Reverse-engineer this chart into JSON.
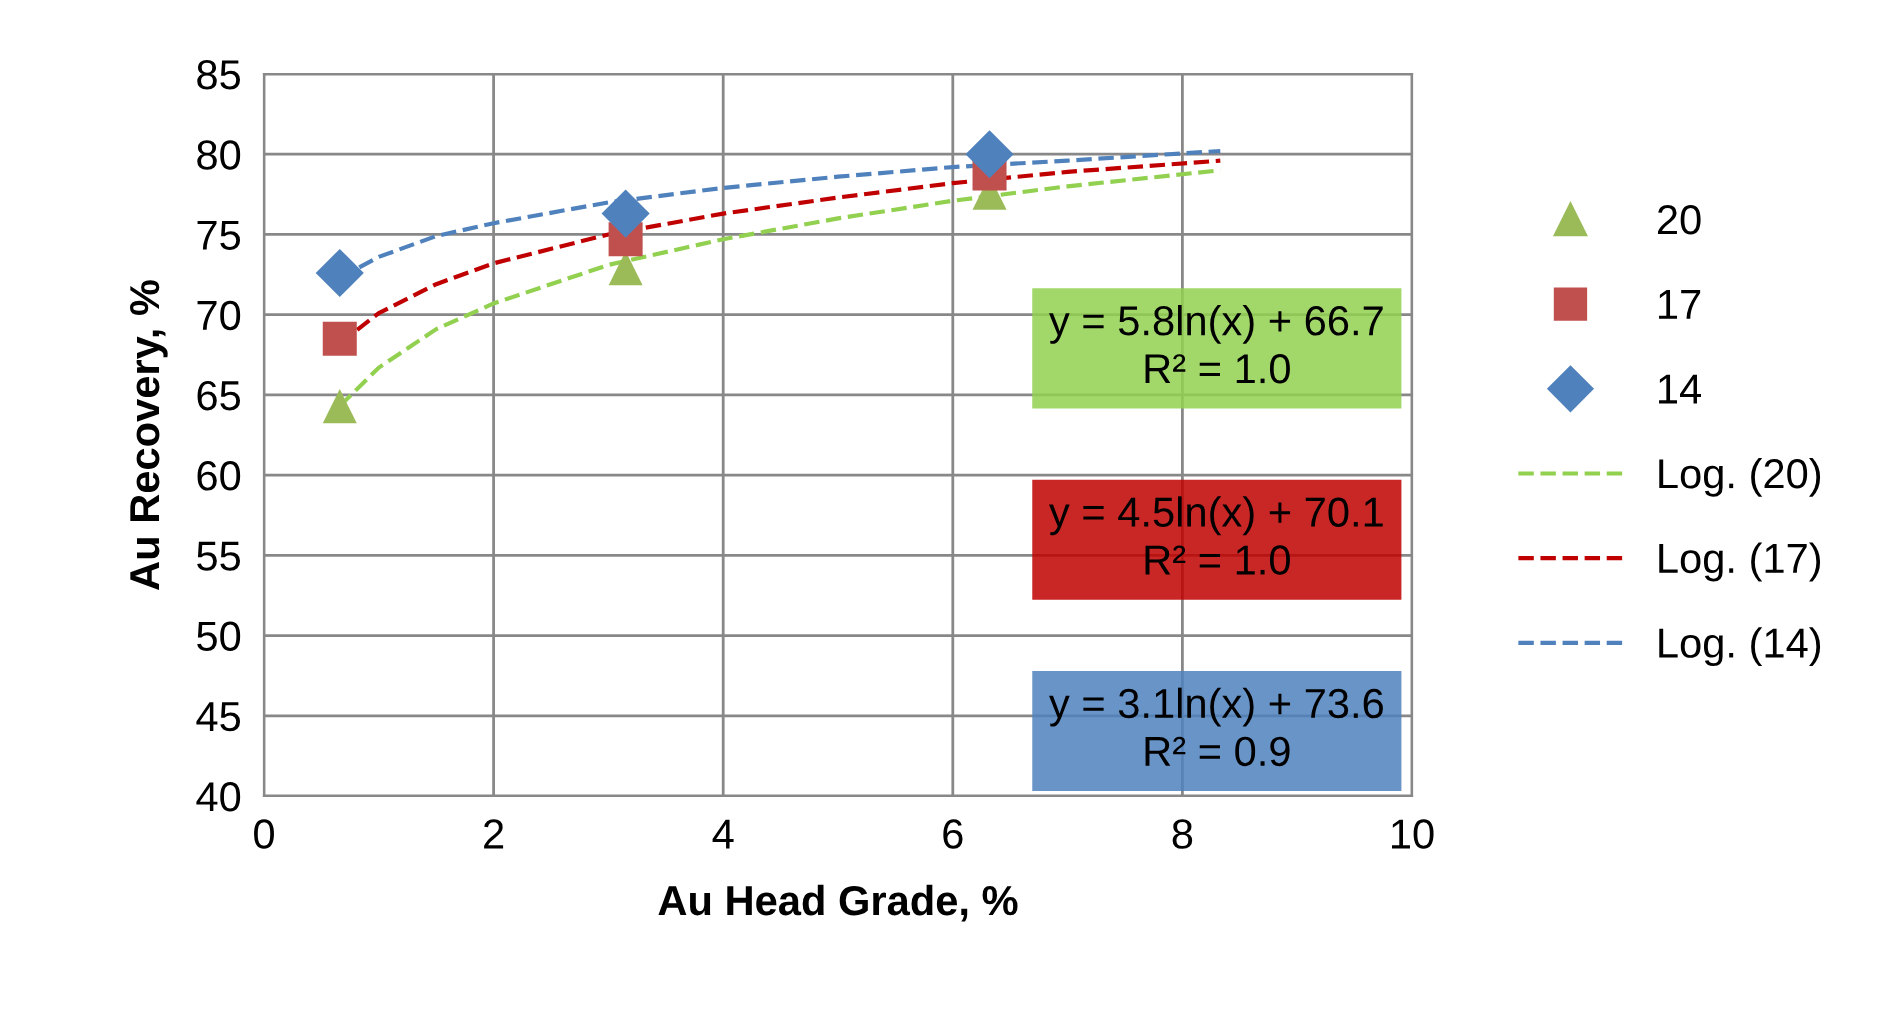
{
  "chart_data": {
    "type": "scatter",
    "xlabel": "Au Head Grade, %",
    "ylabel": "Au Recovery, %",
    "xlim": [
      0,
      10
    ],
    "xticks": [
      0,
      2,
      4,
      6,
      8,
      10
    ],
    "ylim": [
      40,
      85
    ],
    "yticks": [
      40,
      45,
      50,
      55,
      60,
      65,
      70,
      75,
      80,
      85
    ],
    "grid": true,
    "legend": "right",
    "series": [
      {
        "name": "20",
        "color": "#9bbb59",
        "marker": "triangle",
        "x": [
          0.66,
          3.15,
          6.32
        ],
        "values": [
          64.3,
          72.9,
          77.6
        ]
      },
      {
        "name": "17",
        "color": "#c0504d",
        "marker": "square",
        "x": [
          0.66,
          3.15,
          6.32
        ],
        "values": [
          68.5,
          74.7,
          78.8
        ]
      },
      {
        "name": "14",
        "color": "#4f81bd",
        "marker": "diamond",
        "x": [
          0.66,
          3.15,
          6.32
        ],
        "values": [
          72.6,
          76.3,
          80.0
        ]
      },
      {
        "name": "Log. (20)",
        "type": "line",
        "line_style": "dashed",
        "color": "#92d050",
        "x": [
          0.66,
          1,
          1.5,
          2,
          3,
          4,
          5,
          6,
          7,
          8.33
        ],
        "values": [
          64.3,
          66.7,
          69.1,
          70.7,
          73.1,
          74.7,
          76.0,
          77.1,
          78.0,
          79.0
        ]
      },
      {
        "name": "Log. (17)",
        "type": "line",
        "line_style": "dashed",
        "color": "#c00000",
        "x": [
          0.66,
          1,
          1.5,
          2,
          3,
          4,
          5,
          6,
          7,
          8.33
        ],
        "values": [
          68.2,
          70.1,
          71.9,
          73.2,
          75.0,
          76.3,
          77.3,
          78.2,
          78.9,
          79.6
        ]
      },
      {
        "name": "Log. (14)",
        "type": "line",
        "line_style": "dashed",
        "color": "#4f81bd",
        "x": [
          0.66,
          1,
          1.5,
          2,
          3,
          4,
          5,
          6,
          7,
          8.33
        ],
        "values": [
          72.3,
          73.6,
          74.9,
          75.7,
          77.0,
          77.9,
          78.6,
          79.2,
          79.6,
          80.2
        ]
      }
    ],
    "annotations": [
      "y = 5.8ln(x) + 66.7\nR² = 1.0",
      "y = 4.5ln(x) + 70.1\nR² = 1.0",
      "y = 3.1ln(x) + 73.6\nR² = 0.9"
    ]
  }
}
